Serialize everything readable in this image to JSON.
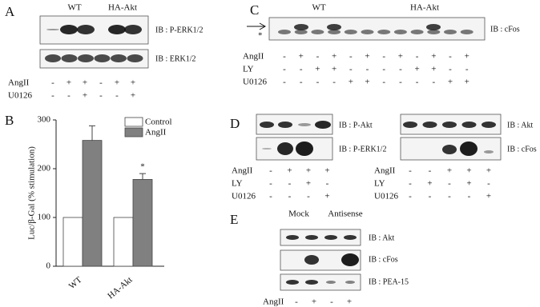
{
  "panel_a": {
    "letter": "A",
    "groups": [
      "WT",
      "HA-Akt"
    ],
    "blots": [
      "IB : P-ERK1/2",
      "IB : ERK1/2"
    ],
    "rows": [
      {
        "label": "AngII",
        "signs": [
          "-",
          "+",
          "+",
          "-",
          "+",
          "+"
        ]
      },
      {
        "label": "U0126",
        "signs": [
          "-",
          "-",
          "+",
          "-",
          "-",
          "+"
        ]
      }
    ]
  },
  "panel_b": {
    "letter": "B"
  },
  "chart_data": {
    "type": "bar",
    "ylabel": "Luc/β-Gal (% stimulation)",
    "categories": [
      "WT",
      "HA-Akt"
    ],
    "series": [
      {
        "name": "Control",
        "color": "#ffffff",
        "values": [
          100,
          100
        ]
      },
      {
        "name": "AngII",
        "color": "#808080",
        "values": [
          258,
          178
        ],
        "errors": [
          30,
          12
        ]
      }
    ],
    "annotation": "*",
    "ylim": [
      0,
      300
    ],
    "yticks": [
      0,
      100,
      200,
      300
    ]
  },
  "panel_c": {
    "letter": "C",
    "groups": [
      "WT",
      "HA-Akt"
    ],
    "marker": "*",
    "blots": [
      "IB : cFos"
    ],
    "rows": [
      {
        "label": "AngII",
        "signs": [
          "-",
          "+",
          "-",
          "+",
          "-",
          "+",
          "-",
          "+",
          "-",
          "+",
          "-",
          "+"
        ]
      },
      {
        "label": "LY",
        "signs": [
          "-",
          "-",
          "+",
          "+",
          "-",
          "-",
          "-",
          "-",
          "+",
          "+",
          "-",
          "-"
        ]
      },
      {
        "label": "U0126",
        "signs": [
          "-",
          "-",
          "-",
          "-",
          "+",
          "+",
          "-",
          "-",
          "-",
          "-",
          "+",
          "+"
        ]
      }
    ]
  },
  "panel_d": {
    "letter": "D",
    "left": {
      "blots": [
        "IB : P-Akt",
        "IB : P-ERK1/2"
      ],
      "rows": [
        {
          "label": "AngII",
          "signs": [
            "-",
            "+",
            "+",
            "+"
          ]
        },
        {
          "label": "LY",
          "signs": [
            "-",
            "-",
            "+",
            "-"
          ]
        },
        {
          "label": "U0126",
          "signs": [
            "-",
            "-",
            "-",
            "+"
          ]
        }
      ]
    },
    "right": {
      "blots": [
        "IB : Akt",
        "IB : cFos"
      ],
      "rows": [
        {
          "label": "AngII",
          "signs": [
            "-",
            "-",
            "+",
            "+",
            "+"
          ]
        },
        {
          "label": "LY",
          "signs": [
            "-",
            "+",
            "-",
            "+",
            "-"
          ]
        },
        {
          "label": "U0126",
          "signs": [
            "-",
            "-",
            "-",
            "-",
            "+"
          ]
        }
      ]
    }
  },
  "panel_e": {
    "letter": "E",
    "groups": [
      "Mock",
      "Antisense"
    ],
    "blots": [
      "IB : Akt",
      "IB : cFos",
      "IB : PEA-15"
    ],
    "rows": [
      {
        "label": "AngII",
        "signs": [
          "-",
          "+",
          "-",
          "+"
        ]
      }
    ]
  }
}
